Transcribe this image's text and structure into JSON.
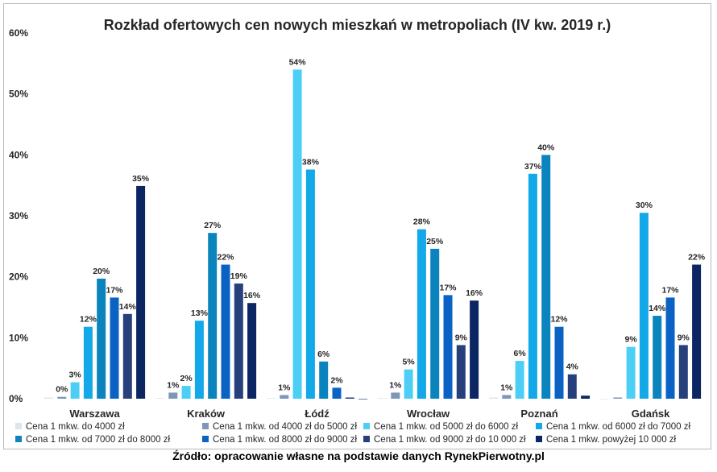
{
  "chart_data": {
    "type": "bar",
    "title": "Rozkład ofertowych cen nowych mieszkań w metropoliach (IV kw. 2019 r.)",
    "categories": [
      "Warszawa",
      "Kraków",
      "Łódź",
      "Wrocław",
      "Poznań",
      "Gdańsk"
    ],
    "ylim": [
      0,
      60
    ],
    "yticks": [
      "0%",
      "10%",
      "20%",
      "30%",
      "40%",
      "50%",
      "60%"
    ],
    "legend_position": "bottom",
    "series": [
      {
        "name": "Cena 1 mkw. do 4000 zł",
        "color": "#dde4ee",
        "values": [
          0.2,
          0.1,
          0.1,
          0.1,
          0.2,
          0.0
        ],
        "labels": [
          "",
          "",
          "",
          "",
          "",
          ""
        ]
      },
      {
        "name": "Cena 1 mkw. od 4000 zł do 5000 zł",
        "color": "#7d97b8",
        "values": [
          0.3,
          1.0,
          0.6,
          1.0,
          0.6,
          0.2
        ],
        "labels": [
          "0%",
          "1%",
          "1%",
          "1%",
          "1%",
          ""
        ]
      },
      {
        "name": "Cena 1 mkw. od 5000 zł do 6000 zł",
        "color": "#4dcff5",
        "values": [
          2.7,
          2.1,
          54.0,
          4.8,
          6.2,
          8.5
        ],
        "labels": [
          "3%",
          "2%",
          "54%",
          "5%",
          "6%",
          "9%"
        ]
      },
      {
        "name": "Cena 1 mkw. od 6000 zł do 7000 zł",
        "color": "#13a8e8",
        "values": [
          11.8,
          12.8,
          37.6,
          27.8,
          36.9,
          30.5
        ],
        "labels": [
          "12%",
          "13%",
          "38%",
          "28%",
          "37%",
          "30%"
        ]
      },
      {
        "name": "Cena 1 mkw. od 7000 zł do 8000 zł",
        "color": "#0b84bd",
        "values": [
          19.7,
          27.2,
          6.1,
          24.6,
          40.0,
          13.6
        ],
        "labels": [
          "20%",
          "27%",
          "6%",
          "25%",
          "40%",
          "14%"
        ]
      },
      {
        "name": "Cena 1 mkw. od 8000 zł do 9000 zł",
        "color": "#0a63c4",
        "values": [
          16.6,
          22.0,
          1.8,
          17.0,
          11.8,
          16.6
        ],
        "labels": [
          "17%",
          "22%",
          "2%",
          "17%",
          "12%",
          "17%"
        ]
      },
      {
        "name": "Cena 1 mkw. od 9000 zł do 10 000 zł",
        "color": "#27407c",
        "values": [
          13.9,
          18.9,
          0.2,
          8.8,
          4.0,
          8.8
        ],
        "labels": [
          "14%",
          "19%",
          "",
          "9%",
          "4%",
          "9%"
        ]
      },
      {
        "name": "Cena 1 mkw. powyżej 10 000 zł",
        "color": "#0c2563",
        "values": [
          34.9,
          15.7,
          0.0,
          16.1,
          0.5,
          22.0
        ],
        "labels": [
          "35%",
          "16%",
          "",
          "16%",
          "",
          "22%"
        ]
      }
    ]
  },
  "source": "Źródło: opracowanie własne na podstawie danych RynekPierwotny.pl"
}
